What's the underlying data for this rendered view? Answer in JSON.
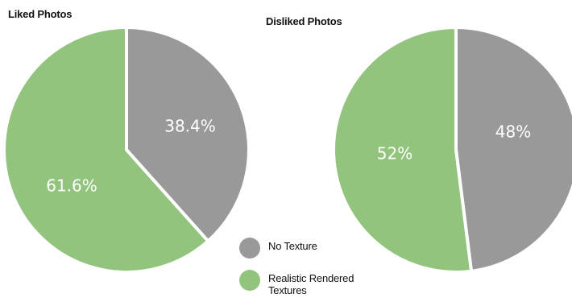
{
  "chart_data": [
    {
      "type": "pie",
      "title": "Liked Photos",
      "categories": [
        "No Texture",
        "Realistic Rendered Textures"
      ],
      "values": [
        38.4,
        61.6
      ],
      "labels": [
        "38.4%",
        "61.6%"
      ]
    },
    {
      "type": "pie",
      "title": "Disliked Photos",
      "categories": [
        "No Texture",
        "Realistic Rendered Textures"
      ],
      "values": [
        48,
        52
      ],
      "labels": [
        "48%",
        "52%"
      ]
    }
  ],
  "legend": {
    "placement": "bottom-center",
    "items": [
      {
        "label_lines": [
          "No Texture"
        ],
        "color": "#999999"
      },
      {
        "label_lines": [
          "Realistic Rendered",
          "Textures"
        ],
        "color": "#92c47d"
      }
    ]
  },
  "colors": {
    "no_texture": "#999999",
    "realistic": "#92c47d",
    "separator": "#ffffff"
  }
}
